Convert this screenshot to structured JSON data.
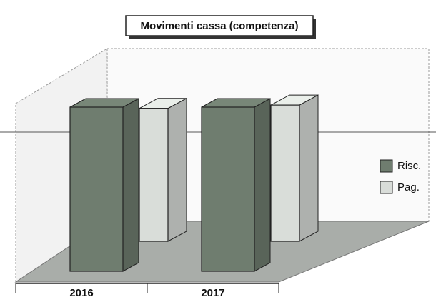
{
  "chart_data": {
    "type": "bar3d",
    "title": "Movimenti cassa (competenza)",
    "categories": [
      "2016",
      "2017"
    ],
    "series": [
      {
        "name": "Risc.",
        "color": "#6f7d6f",
        "values": [
          100,
          100
        ]
      },
      {
        "name": "Pag.",
        "color": "#d9ddd9",
        "values": [
          81,
          83
        ]
      }
    ],
    "ylim": [
      0,
      100
    ],
    "legend": "right"
  }
}
